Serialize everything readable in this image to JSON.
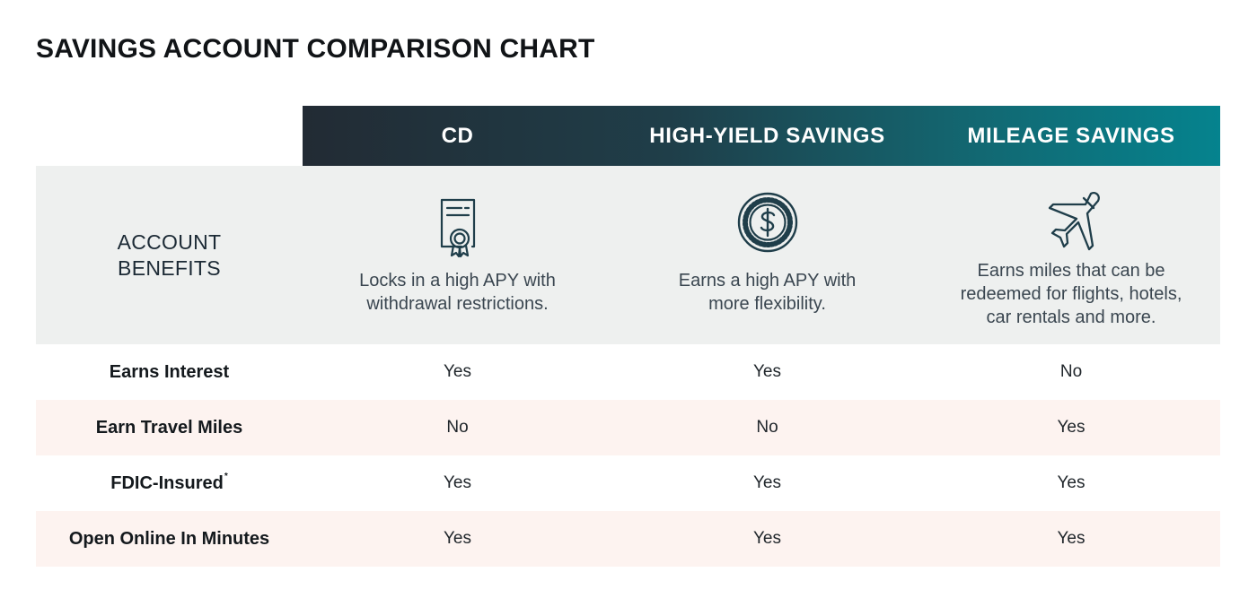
{
  "title": "SAVINGS ACCOUNT COMPARISON CHART",
  "colors": {
    "header_start": "#222b34",
    "header_end": "#05838e",
    "benefits_bg": "#eef0ef",
    "alt_row_bg": "#fdf3f0",
    "icon_stroke": "#1f3e4a"
  },
  "columns": [
    {
      "name": "CD",
      "icon": "certificate-icon",
      "benefit": [
        "Locks in a high APY with",
        "withdrawal restrictions."
      ]
    },
    {
      "name": "HIGH-YIELD SAVINGS",
      "icon": "dollar-coin-icon",
      "benefit": [
        "Earns a high APY with",
        "more flexibility."
      ]
    },
    {
      "name": "MILEAGE SAVINGS",
      "icon": "airplane-icon",
      "benefit": [
        "Earns miles that can be",
        "redeemed for flights, hotels,",
        "car rentals and more."
      ]
    }
  ],
  "benefits_label": [
    "ACCOUNT",
    "BENEFITS"
  ],
  "chart_data": {
    "type": "table",
    "title": "SAVINGS ACCOUNT COMPARISON CHART",
    "columns": [
      "CD",
      "HIGH-YIELD SAVINGS",
      "MILEAGE SAVINGS"
    ],
    "rows": [
      {
        "label": "Earns Interest",
        "footnote": "",
        "values": [
          "Yes",
          "Yes",
          "No"
        ]
      },
      {
        "label": "Earn Travel Miles",
        "footnote": "",
        "values": [
          "No",
          "No",
          "Yes"
        ]
      },
      {
        "label": "FDIC-Insured",
        "footnote": "*",
        "values": [
          "Yes",
          "Yes",
          "Yes"
        ]
      },
      {
        "label": "Open Online In Minutes",
        "footnote": "",
        "values": [
          "Yes",
          "Yes",
          "Yes"
        ]
      }
    ]
  }
}
